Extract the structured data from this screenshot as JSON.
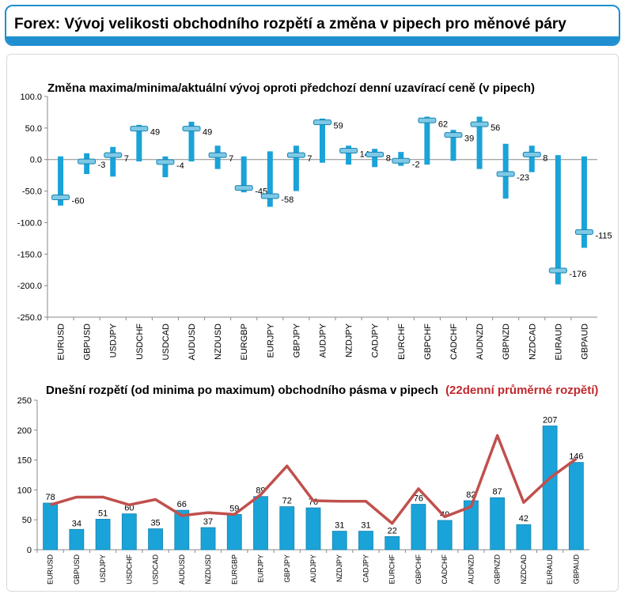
{
  "header": {
    "title": "Forex: Vývoj velikosti obchodního rozpětí a změna v pipech pro měnové páry"
  },
  "colors": {
    "accent": "#1f8fd0",
    "bar": "#1aa3d8",
    "line": "#c0504d",
    "highlight": "#c0282d"
  },
  "chart_data": [
    {
      "type": "bar",
      "title": "Změna maxima/minima/aktuální vývoj oproti předchozí denní uzavírací ceně (v pipech)",
      "categories": [
        "EURUSD",
        "GBPUSD",
        "USDJPY",
        "USDCHF",
        "USDCAD",
        "AUDUSD",
        "NZDUSD",
        "EURGBP",
        "EURJPY",
        "GBPJPY",
        "AUDJPY",
        "NZDJPY",
        "CADJPY",
        "EURCHF",
        "GBPCHF",
        "CADCHF",
        "AUDNZD",
        "GBPNZD",
        "NZDCAD",
        "EURAUD",
        "GBPAUD"
      ],
      "high": [
        5,
        10,
        20,
        55,
        5,
        60,
        22,
        5,
        13,
        22,
        65,
        22,
        17,
        12,
        68,
        47,
        68,
        25,
        22,
        7,
        5
      ],
      "low": [
        -73,
        -23,
        -27,
        -3,
        -28,
        -3,
        -15,
        -52,
        -75,
        -50,
        -5,
        -8,
        -12,
        -10,
        -8,
        -2,
        -15,
        -62,
        -20,
        -198,
        -140
      ],
      "current": [
        -60,
        -3,
        7,
        49,
        -4,
        49,
        7,
        -45,
        -58,
        7,
        59,
        14,
        8,
        -2,
        62,
        39,
        56,
        -23,
        8,
        -176,
        -115
      ],
      "labels": [
        "-60",
        "-3",
        "7",
        "49",
        "-4",
        "49",
        "7",
        "-45",
        "-58",
        "7",
        "59",
        "14",
        "8",
        "-2",
        "62",
        "39",
        "56",
        "-23",
        "8",
        "-176",
        "-115"
      ],
      "ylim": [
        -250,
        100
      ],
      "yticks": [
        "100.0",
        "50.0",
        "0.0",
        "-50.0",
        "-100.0",
        "-150.0",
        "-200.0",
        "-250.0"
      ],
      "grid": false
    },
    {
      "type": "bar",
      "title": "Dnešní rozpětí (od minima po maximum) obchodního pásma v pipech",
      "title_highlight": "(22denní průměrné rozpětí)",
      "categories": [
        "EURUSD",
        "GBPUSD",
        "USDJPY",
        "USDCHF",
        "USDCAD",
        "AUDUSD",
        "NZDUSD",
        "EURGBP",
        "EURJPY",
        "GBPJPY",
        "AUDJPY",
        "NZDJPY",
        "CADJPY",
        "EURCHF",
        "GBPCHF",
        "CADCHF",
        "AUDNZD",
        "GBPNZD",
        "NZDCAD",
        "EURAUD",
        "GBPAUD"
      ],
      "series": [
        {
          "type": "bar",
          "values": [
            78,
            34,
            51,
            60,
            35,
            66,
            37,
            59,
            89,
            72,
            70,
            31,
            31,
            22,
            76,
            49,
            82,
            87,
            42,
            207,
            146
          ]
        },
        {
          "type": "line",
          "values": [
            75,
            88,
            88,
            75,
            84,
            57,
            62,
            59,
            92,
            140,
            82,
            81,
            81,
            44,
            102,
            55,
            72,
            191,
            79,
            120,
            152
          ]
        }
      ],
      "ylim": [
        0,
        250
      ],
      "yticks": [
        "250",
        "200",
        "150",
        "100",
        "50",
        "0"
      ],
      "grid": false
    }
  ]
}
